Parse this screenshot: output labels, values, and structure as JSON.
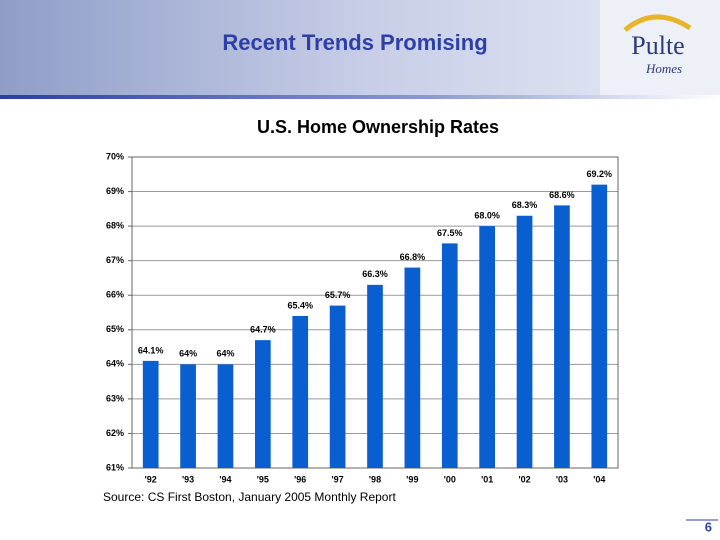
{
  "header": {
    "title": "Recent Trends Promising"
  },
  "logo": {
    "name": "Pulte",
    "tagline": "Homes"
  },
  "chart_data": {
    "type": "bar",
    "title": "U.S. Home Ownership Rates",
    "categories": [
      "'92",
      "'93",
      "'94",
      "'95",
      "'96",
      "'97",
      "'98",
      "'99",
      "'00",
      "'01",
      "'02",
      "'03",
      "'04"
    ],
    "values": [
      64.1,
      64,
      64,
      64.7,
      65.4,
      65.7,
      66.3,
      66.8,
      67.5,
      68.0,
      68.3,
      68.6,
      69.2
    ],
    "value_labels": [
      "64.1%",
      "64%",
      "64%",
      "64.7%",
      "65.4%",
      "65.7%",
      "66.3%",
      "66.8%",
      "67.5%",
      "68.0%",
      "68.3%",
      "68.6%",
      "69.2%"
    ],
    "color": "#0a5fd0",
    "ylim": [
      61,
      70
    ],
    "yticks": [
      {
        "value": 61,
        "label": "61%"
      },
      {
        "value": 62,
        "label": "62%"
      },
      {
        "value": 63,
        "label": "63%"
      },
      {
        "value": 64,
        "label": "64%"
      },
      {
        "value": 65,
        "label": "65%"
      },
      {
        "value": 66,
        "label": "66%"
      },
      {
        "value": 67,
        "label": "67%"
      },
      {
        "value": 68,
        "label": "68%"
      },
      {
        "value": 69,
        "label": "69%"
      },
      {
        "value": 70,
        "label": "70%"
      }
    ],
    "grid": true,
    "source": "Source: CS First Boston, January 2005 Monthly Report"
  },
  "footer": {
    "page": "6"
  }
}
